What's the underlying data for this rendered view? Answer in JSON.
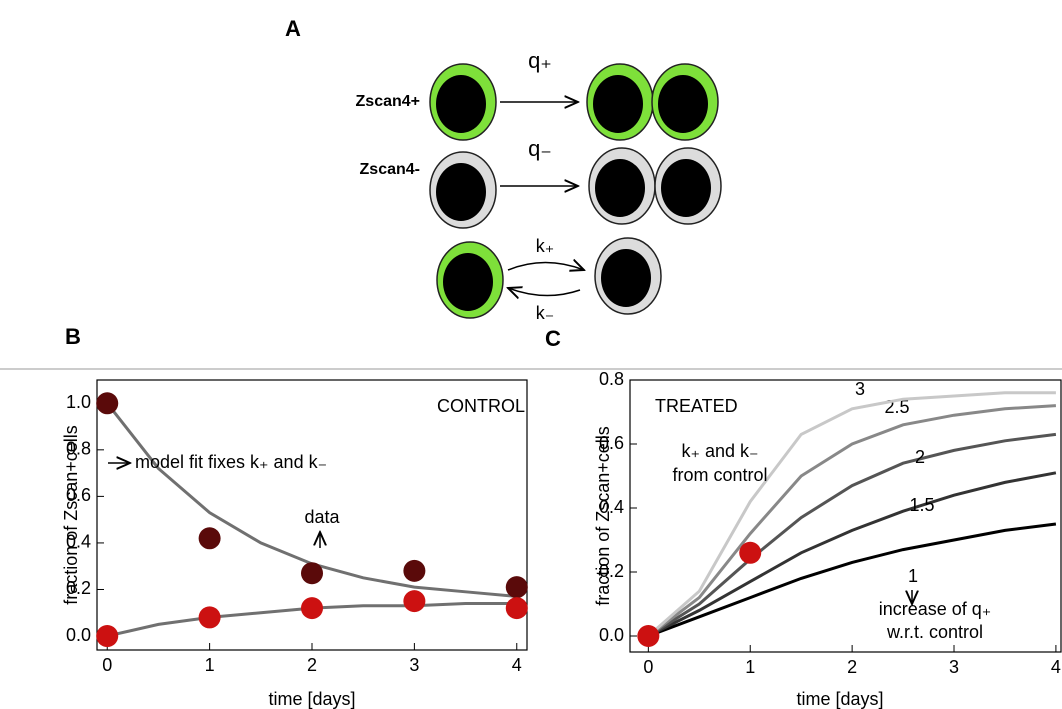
{
  "diagram": {
    "label": "A",
    "rows": [
      {
        "name": "Zscan4+",
        "rate": "q₊"
      },
      {
        "name": "Zscan4-",
        "rate": "q₋"
      }
    ],
    "switch": {
      "forward": "k₊",
      "backward": "k₋"
    }
  },
  "chart_data": [
    {
      "type": "line",
      "panel": "B",
      "xlabel": "time [days]",
      "ylabel": "fraction of Zscan+cells",
      "xlim": [
        -0.1,
        4.1
      ],
      "ylim": [
        -0.06,
        1.1
      ],
      "xticks": [
        0,
        1,
        2,
        3,
        4
      ],
      "yticks": [
        {
          "value": 0,
          "label": "0.0"
        },
        {
          "value": 0.2,
          "label": "0.2"
        },
        {
          "value": 0.4,
          "label": "0.4"
        },
        {
          "value": 0.6,
          "label": "0.6"
        },
        {
          "value": 0.8,
          "label": "0.8"
        },
        {
          "value": 1,
          "label": "1.0"
        }
      ],
      "x": [
        0,
        0.5,
        1,
        1.5,
        2,
        2.5,
        3,
        3.5,
        4
      ],
      "series": [
        {
          "color": "#707070",
          "values": [
            1.0,
            0.72,
            0.53,
            0.4,
            0.31,
            0.25,
            0.21,
            0.19,
            0.17
          ]
        },
        {
          "color": "#707070",
          "values": [
            0.0,
            0.05,
            0.08,
            0.1,
            0.12,
            0.13,
            0.13,
            0.14,
            0.14
          ]
        }
      ],
      "points": [
        {
          "color": "#5a0a0a",
          "x": [
            0,
            1,
            2,
            3,
            4
          ],
          "values": [
            1.0,
            0.42,
            0.27,
            0.28,
            0.21
          ]
        },
        {
          "color": "#cc1111",
          "x": [
            0,
            1,
            2,
            3,
            4
          ],
          "values": [
            0.0,
            0.08,
            0.12,
            0.15,
            0.12
          ]
        }
      ],
      "annotations": [
        "CONTROL",
        "model fit fixes k₊ and k₋",
        "data"
      ]
    },
    {
      "type": "line",
      "panel": "C",
      "xlabel": "time [days]",
      "ylabel": "fraction of Zscan+cells",
      "xlim": [
        -0.18,
        4.05
      ],
      "ylim": [
        -0.05,
        0.8
      ],
      "xticks": [
        0,
        1,
        2,
        3,
        4
      ],
      "yticks": [
        {
          "value": 0,
          "label": "0.0"
        },
        {
          "value": 0.2,
          "label": "0.2"
        },
        {
          "value": 0.4,
          "label": "0.4"
        },
        {
          "value": 0.6,
          "label": "0.6"
        },
        {
          "value": 0.8,
          "label": "0.8"
        }
      ],
      "x": [
        0,
        0.5,
        1,
        1.5,
        2,
        2.5,
        3,
        3.5,
        4
      ],
      "series": [
        {
          "name": "1",
          "color": "#000000",
          "values": [
            0,
            0.06,
            0.12,
            0.18,
            0.23,
            0.27,
            0.3,
            0.33,
            0.35
          ]
        },
        {
          "name": "1.5",
          "color": "#333333",
          "values": [
            0,
            0.08,
            0.17,
            0.26,
            0.33,
            0.39,
            0.44,
            0.48,
            0.51
          ]
        },
        {
          "name": "2",
          "color": "#555555",
          "values": [
            0,
            0.1,
            0.24,
            0.37,
            0.47,
            0.54,
            0.58,
            0.61,
            0.63
          ]
        },
        {
          "name": "2.5",
          "color": "#888888",
          "values": [
            0,
            0.12,
            0.32,
            0.5,
            0.6,
            0.66,
            0.69,
            0.71,
            0.72
          ]
        },
        {
          "name": "3",
          "color": "#c8c8c8",
          "values": [
            0,
            0.14,
            0.42,
            0.63,
            0.71,
            0.74,
            0.75,
            0.76,
            0.76
          ]
        }
      ],
      "points": [
        {
          "color": "#cc1111",
          "x": [
            0,
            1
          ],
          "values": [
            0,
            0.26
          ]
        }
      ],
      "annotations": [
        "TREATED",
        "k₊ and k₋",
        "from control",
        "increase of q₊",
        "w.r.t. control"
      ]
    }
  ]
}
